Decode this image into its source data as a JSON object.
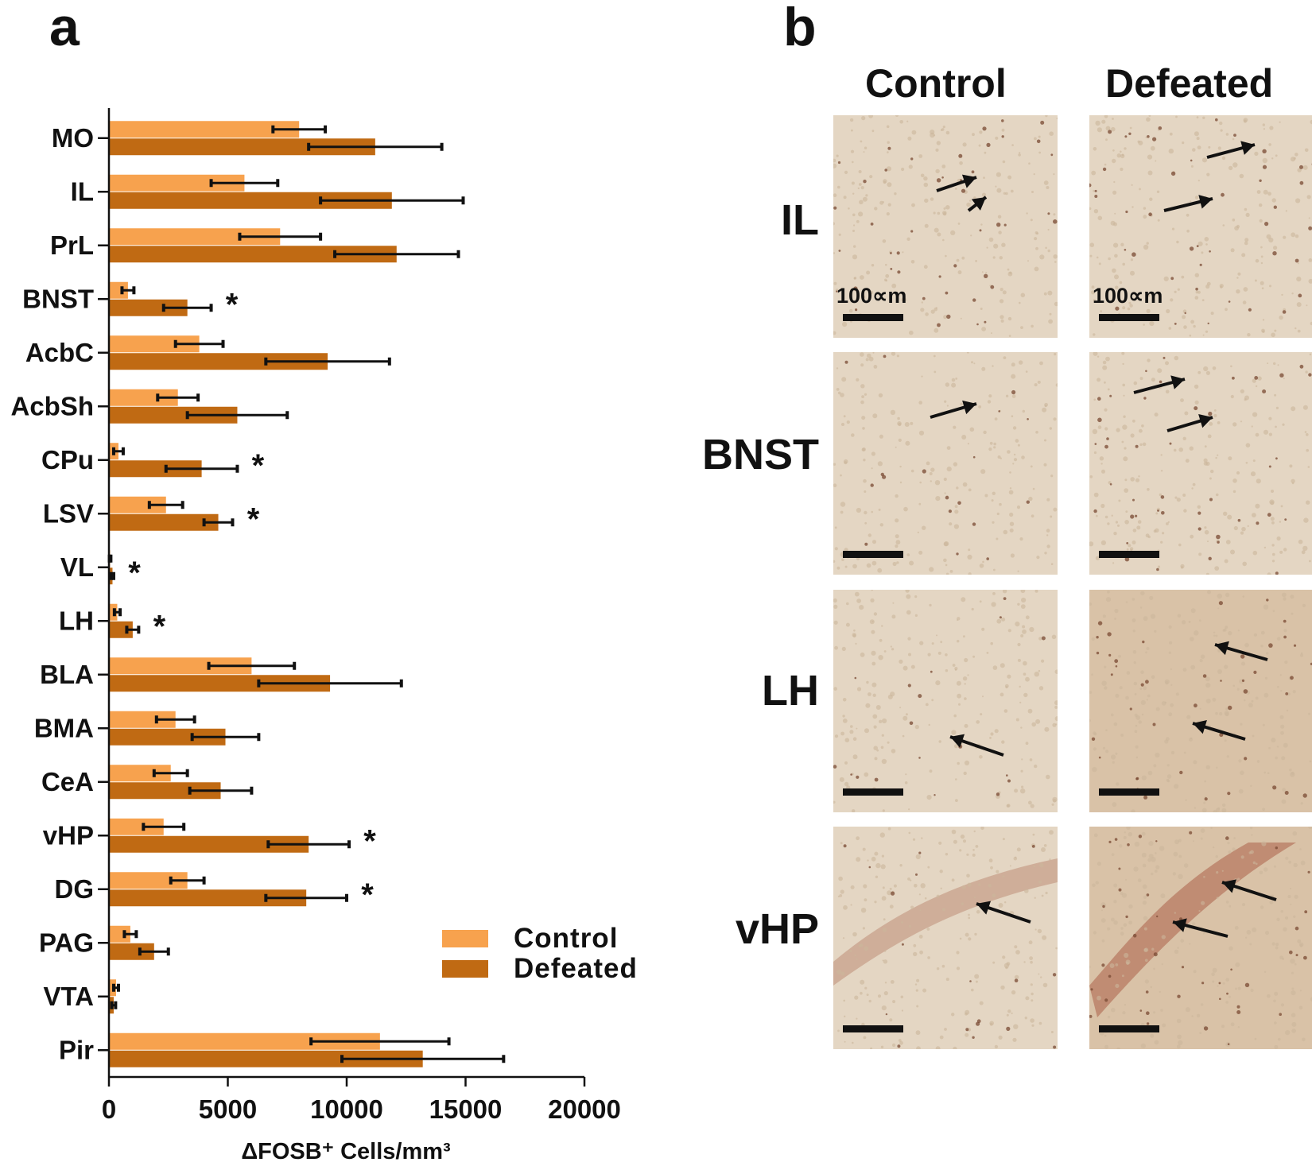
{
  "panels": {
    "a": "a",
    "b": "b"
  },
  "chart_data": {
    "type": "bar",
    "orientation": "horizontal",
    "title": "",
    "categories": [
      "MO",
      "IL",
      "PrL",
      "BNST",
      "AcbC",
      "AcbSh",
      "CPu",
      "LSV",
      "VL",
      "LH",
      "BLA",
      "BMA",
      "CeA",
      "vHP",
      "DG",
      "PAG",
      "VTA",
      "Pir"
    ],
    "series": [
      {
        "name": "Control",
        "color": "#f7a24e",
        "values": [
          8000,
          5700,
          7200,
          800,
          3800,
          2900,
          400,
          2400,
          50,
          350,
          6000,
          2800,
          2600,
          2300,
          3300,
          900,
          300,
          11400
        ],
        "errors": [
          1100,
          1400,
          1700,
          250,
          1000,
          850,
          200,
          700,
          30,
          120,
          1800,
          800,
          700,
          850,
          700,
          250,
          100,
          2900
        ]
      },
      {
        "name": "Defeated",
        "color": "#c06a13",
        "values": [
          11200,
          11900,
          12100,
          3300,
          9200,
          5400,
          3900,
          4600,
          150,
          1000,
          9300,
          4900,
          4700,
          8400,
          8300,
          1900,
          200,
          13200
        ],
        "errors": [
          2800,
          3000,
          2600,
          1000,
          2600,
          2100,
          1500,
          600,
          50,
          250,
          3000,
          1400,
          1300,
          1700,
          1700,
          600,
          80,
          3400
        ]
      }
    ],
    "significant": [
      false,
      false,
      false,
      true,
      false,
      false,
      true,
      true,
      true,
      true,
      false,
      false,
      false,
      true,
      true,
      false,
      false,
      false
    ],
    "significance_marker": "*",
    "xlim": [
      0,
      20000
    ],
    "xticks": [
      "0",
      "5000",
      "10000",
      "15000",
      "20000"
    ],
    "xlabel": "ΔFOSB⁺ Cells/mm³",
    "ylabel": "",
    "legend": {
      "position": "bottom-right",
      "entries": [
        "Control",
        "Defeated"
      ]
    }
  },
  "micrographs": {
    "columns": [
      "Control",
      "Defeated"
    ],
    "rows": [
      "IL",
      "BNST",
      "LH",
      "vHP"
    ],
    "scale_bar_label": "100∝m",
    "background_color": "#e2d3bf"
  }
}
